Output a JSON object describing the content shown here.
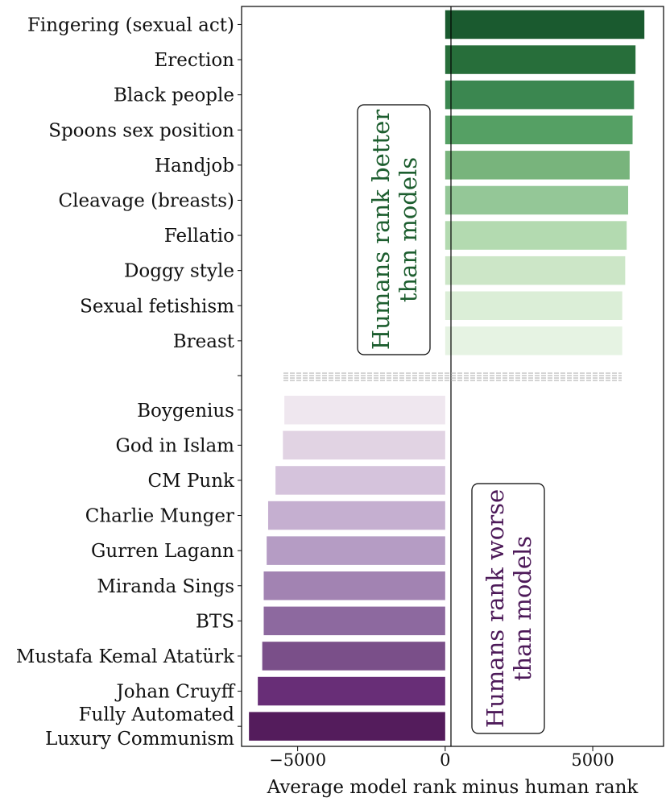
{
  "chart_data": {
    "type": "bar",
    "orientation": "horizontal",
    "xlabel": "Average model rank minus human rank",
    "xlim": [
      -6900,
      7400
    ],
    "xticks": [
      -5000,
      0,
      5000
    ],
    "xtick_labels": [
      "−5000",
      "0",
      "5000"
    ],
    "series": [
      {
        "colormap": "greens",
        "categories": [
          "Fingering (sexual act)",
          "Erection",
          "Black people",
          "Spoons sex position",
          "Handjob",
          "Cleavage (breasts)",
          "Fellatio",
          "Doggy style",
          "Sexual fetishism",
          "Breast"
        ],
        "values": [
          6750,
          6450,
          6400,
          6350,
          6250,
          6200,
          6150,
          6100,
          6000,
          6000
        ],
        "colors": [
          "#1a5a2f",
          "#276e3a",
          "#3b8750",
          "#55a064",
          "#78b47c",
          "#94c797",
          "#b3dab0",
          "#cce6c7",
          "#dbeed7",
          "#e6f3e3"
        ]
      },
      {
        "colormap": "purples",
        "categories": [
          "Boygenius",
          "God in Islam",
          "CM Punk",
          "Charlie Munger",
          "Gurren Lagann",
          "Miranda Sings",
          "BTS",
          "Mustafa Kemal Atatürk",
          "Johan Cruyff",
          "Fully Automated\nLuxury Communism"
        ],
        "values": [
          -5450,
          -5500,
          -5750,
          -6000,
          -6050,
          -6150,
          -6150,
          -6200,
          -6350,
          -6650
        ],
        "colors": [
          "#efe7ef",
          "#e1d3e3",
          "#d5c3dc",
          "#c5afd0",
          "#b59cc4",
          "#a283b2",
          "#8d699f",
          "#7a4f89",
          "#682e77",
          "#541c5c"
        ]
      }
    ],
    "separator": "dashed",
    "annotations": [
      {
        "text": "Humans rank better than models",
        "color": "#1d5e2f"
      },
      {
        "text": "Humans rank worse than models",
        "color": "#4d1a59"
      }
    ]
  }
}
